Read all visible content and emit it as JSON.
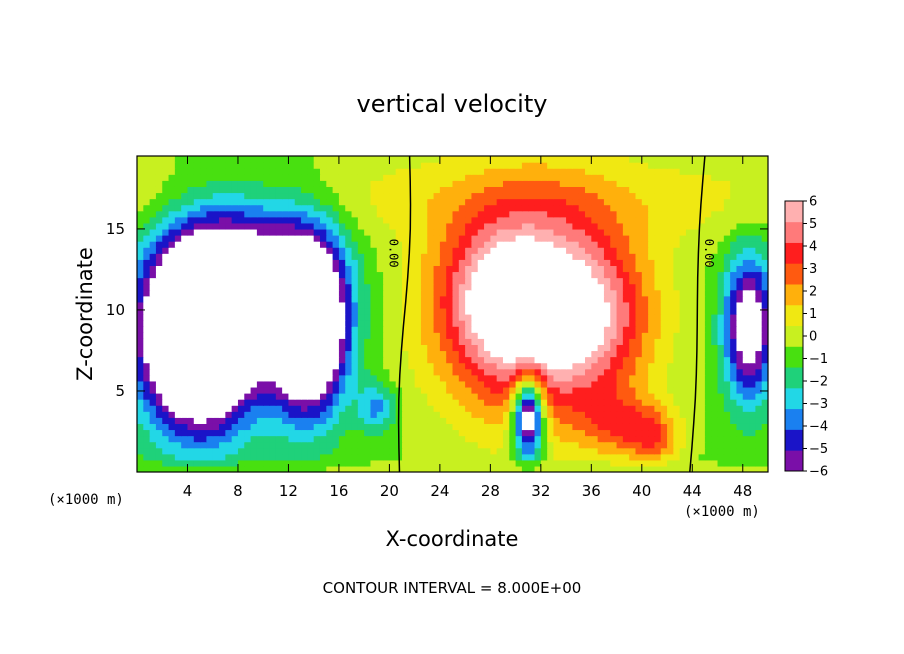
{
  "chart_data": {
    "type": "heatmap",
    "title": "vertical velocity",
    "xlabel": "X-coordinate",
    "ylabel": "Z-coordinate",
    "x_unit_left": "(×1000 m)",
    "x_unit_right": "(×1000 m)",
    "xlim": [
      0,
      50
    ],
    "ylim": [
      0,
      19.5
    ],
    "x_ticks": [
      4,
      8,
      12,
      16,
      20,
      24,
      28,
      32,
      36,
      40,
      44,
      48
    ],
    "x_tick_labels": [
      "4",
      "8",
      "12",
      "16",
      "20",
      "24",
      "28",
      "32",
      "36",
      "40",
      "44",
      "48"
    ],
    "y_ticks": [
      5,
      10,
      15
    ],
    "y_tick_labels": [
      "5",
      "10",
      "15"
    ],
    "colorbar": {
      "min": -6,
      "max": 6,
      "ticks": [
        6,
        5,
        4,
        3,
        2,
        1,
        0,
        -1,
        -2,
        -3,
        -4,
        -5,
        -6
      ],
      "tick_labels": [
        "6",
        "5",
        "4",
        "3",
        "2",
        "1",
        "0",
        "−1",
        "−2",
        "−3",
        "−4",
        "−5",
        "−6"
      ]
    },
    "colormap": [
      "#7a0fa8",
      "#1a14c8",
      "#1a80f0",
      "#22d7e6",
      "#1fd17a",
      "#48e010",
      "#c8f020",
      "#f0e812",
      "#ffb00c",
      "#ff5a10",
      "#ff1e1e",
      "#ff7a7a",
      "#ffb0b0"
    ],
    "saturated_color": "#ffffff",
    "contour_label": "0.00",
    "contour_interval_text": "CONTOUR INTERVAL = 8.000E+00",
    "features": [
      {
        "kind": "updraft",
        "x": 31.5,
        "z": 10.0,
        "amp": 8.0,
        "sx": 7.5,
        "sz": 6.5
      },
      {
        "kind": "updraft",
        "x": 29.0,
        "z": 11.0,
        "amp": 3.0,
        "sx": 4.0,
        "sz": 3.5
      },
      {
        "kind": "updraft",
        "x": 36.0,
        "z": 9.5,
        "amp": 2.5,
        "sx": 4.5,
        "sz": 4.0
      },
      {
        "kind": "downdraft",
        "x": 31.0,
        "z": 3.5,
        "amp": -9.0,
        "sx": 1.2,
        "sz": 2.5
      },
      {
        "kind": "downdraft",
        "x": 5.0,
        "z": 8.5,
        "amp": -14.0,
        "sx": 4.5,
        "sz": 5.5
      },
      {
        "kind": "downdraft",
        "x": 13.5,
        "z": 9.0,
        "amp": -12.0,
        "sx": 3.0,
        "sz": 5.0
      },
      {
        "kind": "downdraft",
        "x": 9.0,
        "z": 13.0,
        "amp": -5.0,
        "sx": 6.0,
        "sz": 4.5
      },
      {
        "kind": "downdraft",
        "x": 48.5,
        "z": 9.0,
        "amp": -7.0,
        "sx": 2.0,
        "sz": 4.5
      },
      {
        "kind": "downdraft",
        "x": 19.0,
        "z": 4.0,
        "amp": -3.0,
        "sx": 1.5,
        "sz": 1.5
      },
      {
        "kind": "updraft",
        "x": 38.5,
        "z": 3.0,
        "amp": 3.0,
        "sx": 3.5,
        "sz": 2.0
      },
      {
        "kind": "updraft",
        "x": 41.0,
        "z": 2.0,
        "amp": 2.5,
        "sx": 2.0,
        "sz": 1.5
      }
    ]
  }
}
